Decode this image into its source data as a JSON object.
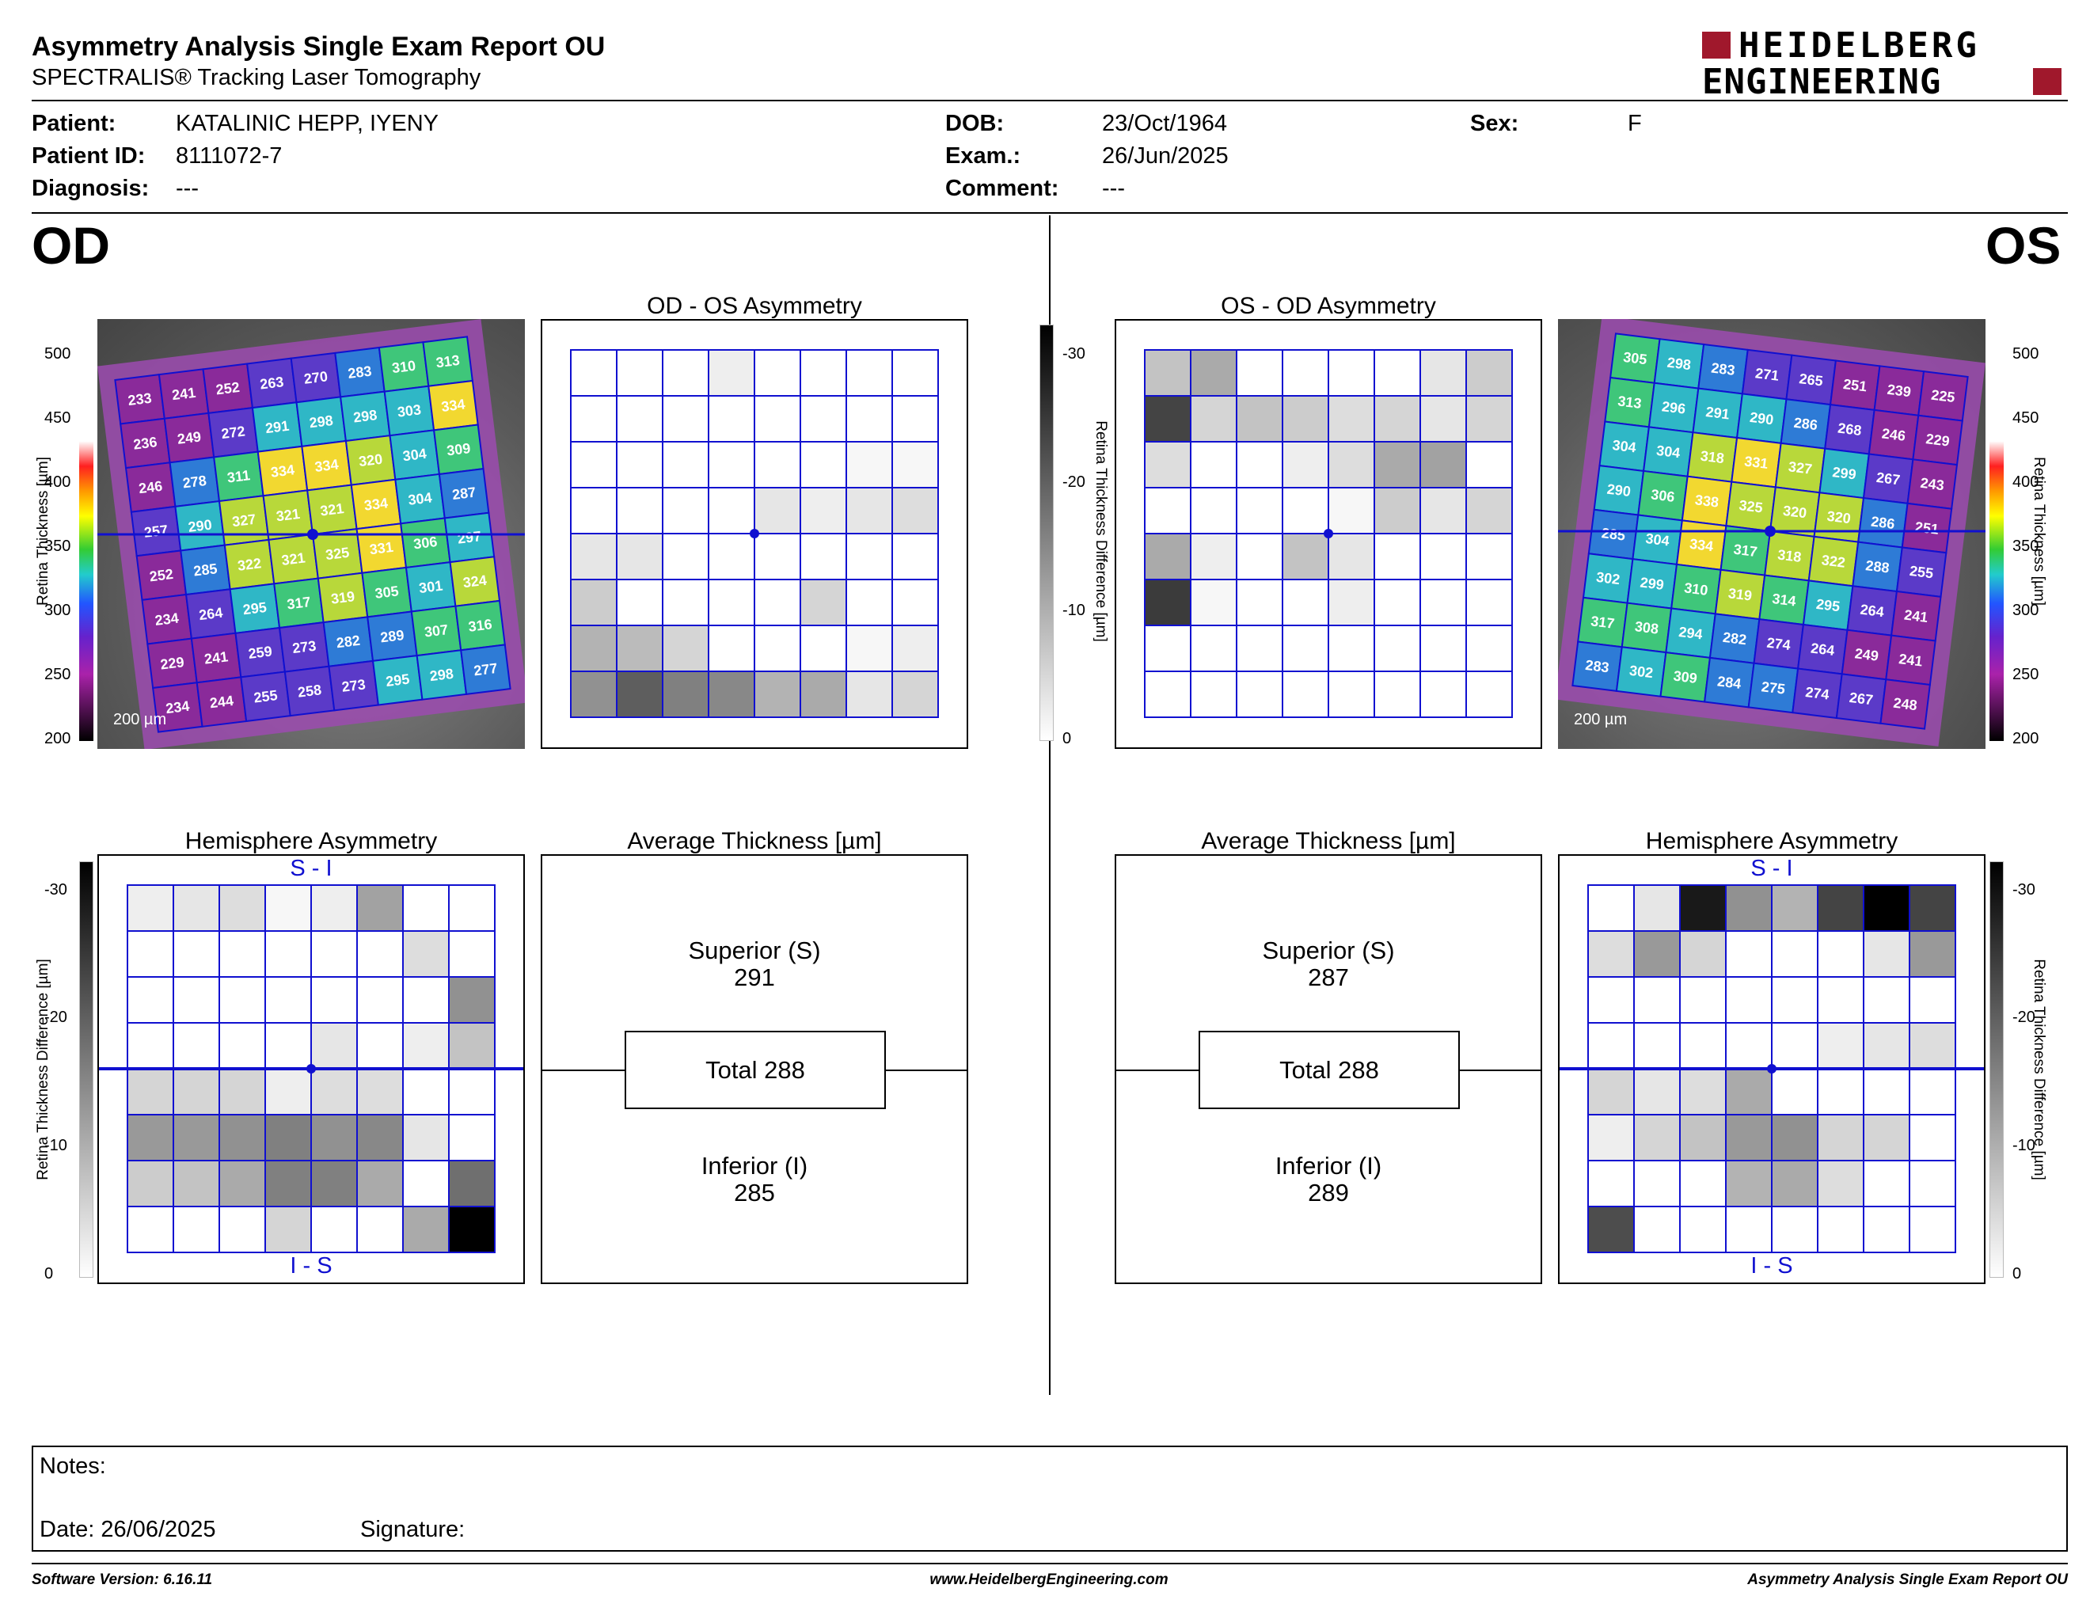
{
  "header": {
    "title": "Asymmetry Analysis Single Exam Report OU",
    "subtitle": "SPECTRALIS® Tracking Laser Tomography",
    "logo_line1": "HEIDELBERG",
    "logo_line2": "ENGINEERING"
  },
  "patient": {
    "name_label": "Patient:",
    "name": "KATALINIC HEPP, IYENY",
    "id_label": "Patient ID:",
    "id": "8111072-7",
    "diagnosis_label": "Diagnosis:",
    "diagnosis": "---",
    "dob_label": "DOB:",
    "dob": "23/Oct/1964",
    "exam_label": "Exam.:",
    "exam": "26/Jun/2025",
    "comment_label": "Comment:",
    "comment": "---",
    "sex_label": "Sex:",
    "sex": "F"
  },
  "od": {
    "eye_label": "OD",
    "asym_title": "OD - OS Asymmetry",
    "hemi_title": "Hemisphere Asymmetry",
    "avg_title": "Average Thickness [µm]",
    "superior_label": "Superior (S)",
    "superior_value": "291",
    "total_label": "Total 288",
    "inferior_label": "Inferior (I)",
    "inferior_value": "285",
    "scale_bar": "200 µm",
    "hemi_top": "S - I",
    "hemi_bottom": "I - S",
    "thickness_grid": [
      [
        233,
        241,
        252,
        263,
        270,
        283,
        310,
        313
      ],
      [
        236,
        249,
        272,
        291,
        298,
        298,
        303,
        334
      ],
      [
        246,
        278,
        311,
        334,
        334,
        320,
        304,
        309
      ],
      [
        257,
        290,
        327,
        321,
        321,
        334,
        304,
        287
      ],
      [
        252,
        285,
        322,
        321,
        325,
        331,
        306,
        297
      ],
      [
        234,
        264,
        295,
        317,
        319,
        305,
        301,
        324
      ],
      [
        229,
        241,
        259,
        273,
        282,
        289,
        307,
        316
      ],
      [
        234,
        244,
        255,
        258,
        273,
        295,
        298,
        277
      ]
    ],
    "asym_grid": [
      [
        0,
        0,
        0,
        2,
        0,
        0,
        0,
        0
      ],
      [
        0,
        0,
        0,
        0,
        0,
        0,
        0,
        0
      ],
      [
        0,
        0,
        0,
        0,
        0,
        0,
        1,
        1
      ],
      [
        0,
        0,
        0,
        0,
        3,
        2,
        3,
        4
      ],
      [
        3,
        3,
        0,
        0,
        0,
        0,
        0,
        0
      ],
      [
        6,
        0,
        0,
        0,
        0,
        5,
        0,
        0
      ],
      [
        9,
        8,
        5,
        0,
        0,
        0,
        1,
        2
      ],
      [
        13,
        19,
        15,
        14,
        9,
        10,
        3,
        5
      ]
    ],
    "hemi_grid": [
      [
        2,
        3,
        4,
        1,
        2,
        11,
        0,
        0
      ],
      [
        0,
        0,
        0,
        0,
        0,
        0,
        4,
        0
      ],
      [
        0,
        0,
        0,
        0,
        0,
        0,
        0,
        13
      ],
      [
        0,
        0,
        0,
        0,
        3,
        0,
        2,
        7
      ],
      [
        5,
        5,
        5,
        2,
        4,
        4,
        0,
        0
      ],
      [
        12,
        12,
        13,
        15,
        13,
        14,
        3,
        0
      ],
      [
        6,
        7,
        10,
        15,
        15,
        10,
        0,
        17
      ],
      [
        0,
        0,
        0,
        5,
        0,
        0,
        10,
        30
      ]
    ]
  },
  "os": {
    "eye_label": "OS",
    "asym_title": "OS - OD Asymmetry",
    "hemi_title": "Hemisphere Asymmetry",
    "avg_title": "Average Thickness [µm]",
    "superior_label": "Superior (S)",
    "superior_value": "287",
    "total_label": "Total 288",
    "inferior_label": "Inferior (I)",
    "inferior_value": "289",
    "scale_bar": "200 µm",
    "hemi_top": "S - I",
    "hemi_bottom": "I - S",
    "thickness_grid": [
      [
        305,
        298,
        283,
        271,
        265,
        251,
        239,
        225
      ],
      [
        313,
        296,
        291,
        290,
        286,
        268,
        246,
        229
      ],
      [
        304,
        304,
        318,
        331,
        327,
        299,
        267,
        243
      ],
      [
        290,
        306,
        338,
        325,
        320,
        320,
        286,
        251
      ],
      [
        285,
        304,
        334,
        317,
        318,
        322,
        288,
        255
      ],
      [
        302,
        299,
        310,
        319,
        314,
        295,
        264,
        241
      ],
      [
        317,
        308,
        294,
        282,
        274,
        264,
        249,
        241
      ],
      [
        283,
        302,
        309,
        284,
        275,
        274,
        267,
        248
      ]
    ],
    "asym_grid": [
      [
        7,
        10,
        0,
        0,
        0,
        0,
        3,
        6
      ],
      [
        22,
        5,
        7,
        6,
        4,
        5,
        3,
        5
      ],
      [
        4,
        0,
        0,
        2,
        4,
        10,
        11,
        0
      ],
      [
        0,
        0,
        0,
        0,
        1,
        6,
        3,
        5
      ],
      [
        10,
        2,
        0,
        7,
        3,
        0,
        0,
        0
      ],
      [
        23,
        1,
        0,
        0,
        2,
        0,
        0,
        0
      ],
      [
        0,
        0,
        0,
        0,
        0,
        0,
        0,
        0
      ],
      [
        0,
        0,
        0,
        0,
        0,
        0,
        0,
        0
      ]
    ],
    "hemi_grid": [
      [
        0,
        3,
        27,
        13,
        9,
        22,
        30,
        22
      ],
      [
        4,
        12,
        5,
        0,
        0,
        0,
        3,
        12
      ],
      [
        0,
        0,
        0,
        0,
        0,
        0,
        0,
        0
      ],
      [
        0,
        0,
        0,
        0,
        0,
        2,
        3,
        4
      ],
      [
        5,
        3,
        4,
        10,
        0,
        0,
        0,
        0
      ],
      [
        2,
        5,
        7,
        12,
        13,
        5,
        5,
        0
      ],
      [
        0,
        0,
        0,
        9,
        10,
        4,
        0,
        0
      ],
      [
        21,
        0,
        0,
        0,
        0,
        0,
        0,
        0
      ]
    ]
  },
  "scales": {
    "thickness_ticks": [
      "500",
      "450",
      "400",
      "350",
      "300",
      "250",
      "200"
    ],
    "thickness_axis_label": "Retina  Thickness [µm]",
    "diff_ticks": [
      "-30",
      "-20",
      "-10",
      "0"
    ],
    "diff_axis_label": "Retina Thickness Difference [µm]"
  },
  "notes": {
    "notes_label": "Notes:",
    "date_label": "Date: 26/06/2025",
    "signature_label": "Signature:"
  },
  "footer": {
    "software": "Software Version: 6.16.11",
    "website": "www.HeidelbergEngineering.com",
    "report_name": "Asymmetry Analysis Single Exam Report OU"
  },
  "colors": {
    "grid_line": "#1010d0",
    "logo_red": "#a0182c"
  }
}
